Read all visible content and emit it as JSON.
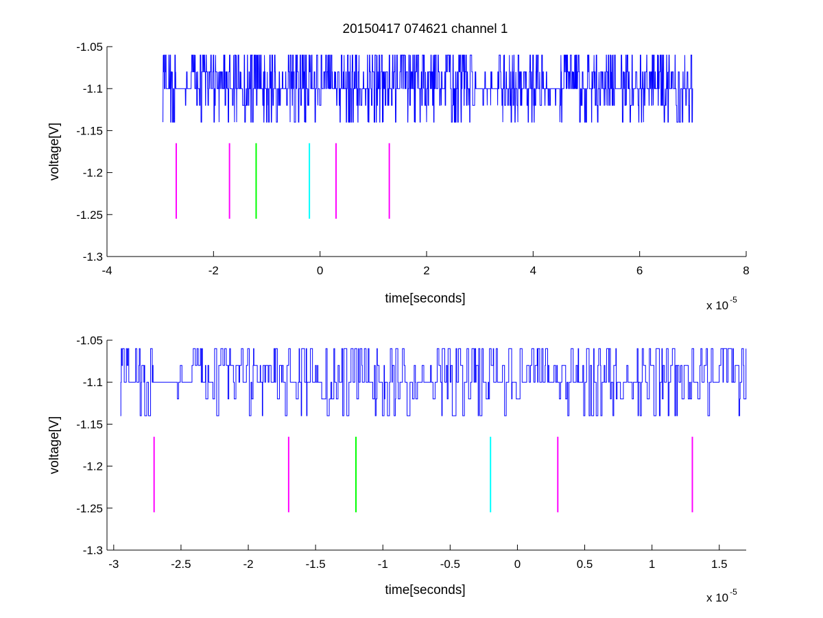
{
  "figure": {
    "title": "20150417 074621 channel 1",
    "background": "#ffffff",
    "trace_color": "#0000ff"
  },
  "chart_data": [
    {
      "type": "line",
      "name": "overview",
      "title": "20150417 074621 channel 1",
      "xlabel": "time[seconds]",
      "ylabel": "voltage[V]",
      "x_exponent_label": "x 10",
      "x_exponent": "-5",
      "x_scale": 1e-05,
      "xlim": [
        -4,
        8
      ],
      "ylim": [
        -1.3,
        -1.05
      ],
      "xticks": [
        -4,
        -2,
        0,
        2,
        4,
        6,
        8
      ],
      "xtick_labels": [
        "-4",
        "-2",
        "0",
        "2",
        "4",
        "6",
        "8"
      ],
      "yticks": [
        -1.05,
        -1.1,
        -1.15,
        -1.2,
        -1.25,
        -1.3
      ],
      "ytick_labels": [
        "-1.05",
        "-1.1",
        "-1.15",
        "-1.2",
        "-1.25",
        "-1.3"
      ],
      "grid": false,
      "signal": {
        "t_start": -2.95,
        "t_end": 7.0,
        "levels": [
          -1.14,
          -1.12,
          -1.1,
          -1.08,
          -1.06
        ],
        "baseline": -1.1,
        "points": 1250
      },
      "markers": [
        {
          "x": -2.7,
          "y_range": [
            -1.255,
            -1.165
          ],
          "color": "#ff00ff"
        },
        {
          "x": -1.7,
          "y_range": [
            -1.255,
            -1.165
          ],
          "color": "#ff00ff"
        },
        {
          "x": -1.2,
          "y_range": [
            -1.255,
            -1.165
          ],
          "color": "#00ff00"
        },
        {
          "x": -0.2,
          "y_range": [
            -1.255,
            -1.165
          ],
          "color": "#00ffff"
        },
        {
          "x": 0.3,
          "y_range": [
            -1.255,
            -1.165
          ],
          "color": "#ff00ff"
        },
        {
          "x": 1.3,
          "y_range": [
            -1.255,
            -1.165
          ],
          "color": "#ff00ff"
        }
      ]
    },
    {
      "type": "line",
      "name": "zoom",
      "title": "",
      "xlabel": "time[seconds]",
      "ylabel": "voltage[V]",
      "x_exponent_label": "x 10",
      "x_exponent": "-5",
      "x_scale": 1e-05,
      "xlim": [
        -3.05,
        1.7
      ],
      "ylim": [
        -1.3,
        -1.05
      ],
      "xticks": [
        -3,
        -2.5,
        -2,
        -1.5,
        -1,
        -0.5,
        0,
        0.5,
        1,
        1.5
      ],
      "xtick_labels": [
        "-3",
        "-2.5",
        "-2",
        "-1.5",
        "-1",
        "-0.5",
        "0",
        "0.5",
        "1",
        "1.5"
      ],
      "yticks": [
        -1.05,
        -1.1,
        -1.15,
        -1.2,
        -1.25,
        -1.3
      ],
      "ytick_labels": [
        "-1.05",
        "-1.1",
        "-1.15",
        "-1.2",
        "-1.25",
        "-1.3"
      ],
      "grid": false,
      "signal": {
        "t_start": -2.95,
        "t_end": 1.7,
        "levels": [
          -1.14,
          -1.12,
          -1.1,
          -1.08,
          -1.06
        ],
        "baseline": -1.1,
        "points": 900
      },
      "markers": [
        {
          "x": -2.7,
          "y_range": [
            -1.255,
            -1.165
          ],
          "color": "#ff00ff"
        },
        {
          "x": -1.7,
          "y_range": [
            -1.255,
            -1.165
          ],
          "color": "#ff00ff"
        },
        {
          "x": -1.2,
          "y_range": [
            -1.255,
            -1.165
          ],
          "color": "#00ff00"
        },
        {
          "x": -0.2,
          "y_range": [
            -1.255,
            -1.165
          ],
          "color": "#00ffff"
        },
        {
          "x": 0.3,
          "y_range": [
            -1.255,
            -1.165
          ],
          "color": "#ff00ff"
        },
        {
          "x": 1.3,
          "y_range": [
            -1.255,
            -1.165
          ],
          "color": "#ff00ff"
        }
      ]
    }
  ]
}
